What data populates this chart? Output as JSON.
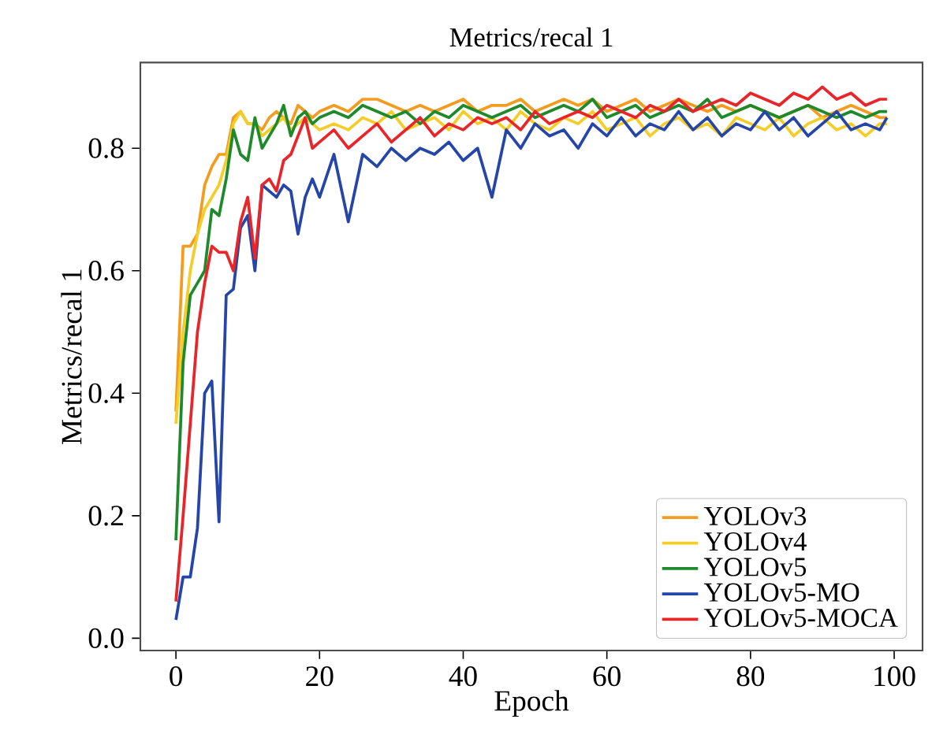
{
  "chart_data": {
    "type": "line",
    "title": "Metrics/recal 1",
    "xlabel": "Epoch",
    "ylabel": "Metrics/recal 1",
    "x": [
      0,
      1,
      2,
      3,
      4,
      5,
      6,
      7,
      8,
      9,
      10,
      11,
      12,
      13,
      14,
      15,
      16,
      17,
      18,
      19,
      20,
      22,
      24,
      26,
      28,
      30,
      32,
      34,
      36,
      38,
      40,
      42,
      44,
      46,
      48,
      50,
      52,
      54,
      56,
      58,
      60,
      62,
      64,
      66,
      68,
      70,
      72,
      74,
      76,
      78,
      80,
      82,
      84,
      86,
      88,
      90,
      92,
      94,
      96,
      98,
      99
    ],
    "xlim": [
      -4.95,
      103.95
    ],
    "xticks": [
      0,
      20,
      40,
      60,
      80,
      100
    ],
    "ylim": [
      -0.02,
      0.94
    ],
    "yticks": [
      {
        "value": 0,
        "label": "0.0"
      },
      0.2,
      0.4,
      0.6,
      0.8
    ],
    "legend": "bottom right",
    "marker": "none",
    "line_style": "solid",
    "grid": false,
    "series": [
      {
        "name": "YOLOv3",
        "color": "#f39c1f",
        "values": [
          0.37,
          0.64,
          0.64,
          0.66,
          0.74,
          0.77,
          0.79,
          0.79,
          0.85,
          0.86,
          0.84,
          0.84,
          0.83,
          0.85,
          0.86,
          0.85,
          0.84,
          0.87,
          0.86,
          0.85,
          0.86,
          0.87,
          0.86,
          0.88,
          0.88,
          0.87,
          0.86,
          0.87,
          0.86,
          0.87,
          0.88,
          0.86,
          0.87,
          0.87,
          0.88,
          0.86,
          0.87,
          0.88,
          0.87,
          0.88,
          0.86,
          0.87,
          0.88,
          0.86,
          0.87,
          0.88,
          0.87,
          0.86,
          0.87,
          0.86,
          0.87,
          0.86,
          0.85,
          0.86,
          0.87,
          0.85,
          0.86,
          0.87,
          0.86,
          0.85,
          0.85
        ]
      },
      {
        "name": "YOLOv4",
        "color": "#f5cd28",
        "values": [
          0.35,
          0.5,
          0.6,
          0.66,
          0.7,
          0.72,
          0.74,
          0.78,
          0.84,
          0.86,
          0.84,
          0.84,
          0.82,
          0.83,
          0.84,
          0.85,
          0.83,
          0.84,
          0.85,
          0.84,
          0.83,
          0.84,
          0.83,
          0.85,
          0.84,
          0.86,
          0.83,
          0.84,
          0.85,
          0.83,
          0.86,
          0.84,
          0.85,
          0.83,
          0.86,
          0.84,
          0.83,
          0.85,
          0.84,
          0.86,
          0.83,
          0.84,
          0.85,
          0.82,
          0.84,
          0.85,
          0.83,
          0.84,
          0.82,
          0.85,
          0.84,
          0.83,
          0.85,
          0.82,
          0.84,
          0.85,
          0.83,
          0.84,
          0.82,
          0.84,
          0.84
        ]
      },
      {
        "name": "YOLOv5",
        "color": "#1f8a2c",
        "values": [
          0.16,
          0.45,
          0.56,
          0.58,
          0.6,
          0.7,
          0.69,
          0.75,
          0.83,
          0.79,
          0.78,
          0.85,
          0.8,
          0.82,
          0.84,
          0.87,
          0.82,
          0.85,
          0.86,
          0.84,
          0.85,
          0.86,
          0.85,
          0.87,
          0.86,
          0.85,
          0.86,
          0.84,
          0.86,
          0.85,
          0.87,
          0.86,
          0.85,
          0.86,
          0.87,
          0.85,
          0.86,
          0.87,
          0.86,
          0.88,
          0.85,
          0.86,
          0.87,
          0.85,
          0.86,
          0.87,
          0.86,
          0.88,
          0.85,
          0.86,
          0.87,
          0.86,
          0.85,
          0.86,
          0.87,
          0.86,
          0.85,
          0.86,
          0.85,
          0.86,
          0.86
        ]
      },
      {
        "name": "YOLOv5-MO",
        "color": "#2546a8",
        "values": [
          0.03,
          0.1,
          0.1,
          0.18,
          0.4,
          0.42,
          0.19,
          0.56,
          0.57,
          0.67,
          0.69,
          0.6,
          0.74,
          0.73,
          0.72,
          0.74,
          0.73,
          0.66,
          0.72,
          0.75,
          0.72,
          0.79,
          0.68,
          0.79,
          0.77,
          0.8,
          0.78,
          0.8,
          0.79,
          0.81,
          0.78,
          0.8,
          0.72,
          0.83,
          0.8,
          0.84,
          0.82,
          0.83,
          0.8,
          0.84,
          0.82,
          0.85,
          0.82,
          0.84,
          0.83,
          0.86,
          0.83,
          0.85,
          0.82,
          0.84,
          0.83,
          0.86,
          0.83,
          0.85,
          0.82,
          0.84,
          0.86,
          0.83,
          0.84,
          0.83,
          0.85
        ]
      },
      {
        "name": "YOLOv5-MOCA",
        "color": "#e8262a",
        "values": [
          0.06,
          0.2,
          0.35,
          0.5,
          0.58,
          0.64,
          0.63,
          0.63,
          0.6,
          0.68,
          0.72,
          0.62,
          0.74,
          0.75,
          0.73,
          0.78,
          0.79,
          0.82,
          0.85,
          0.8,
          0.81,
          0.83,
          0.8,
          0.82,
          0.84,
          0.81,
          0.83,
          0.85,
          0.82,
          0.84,
          0.83,
          0.85,
          0.84,
          0.85,
          0.83,
          0.86,
          0.84,
          0.85,
          0.86,
          0.85,
          0.87,
          0.86,
          0.85,
          0.87,
          0.86,
          0.88,
          0.86,
          0.87,
          0.88,
          0.87,
          0.89,
          0.88,
          0.87,
          0.89,
          0.88,
          0.9,
          0.88,
          0.89,
          0.87,
          0.88,
          0.88
        ]
      }
    ]
  }
}
